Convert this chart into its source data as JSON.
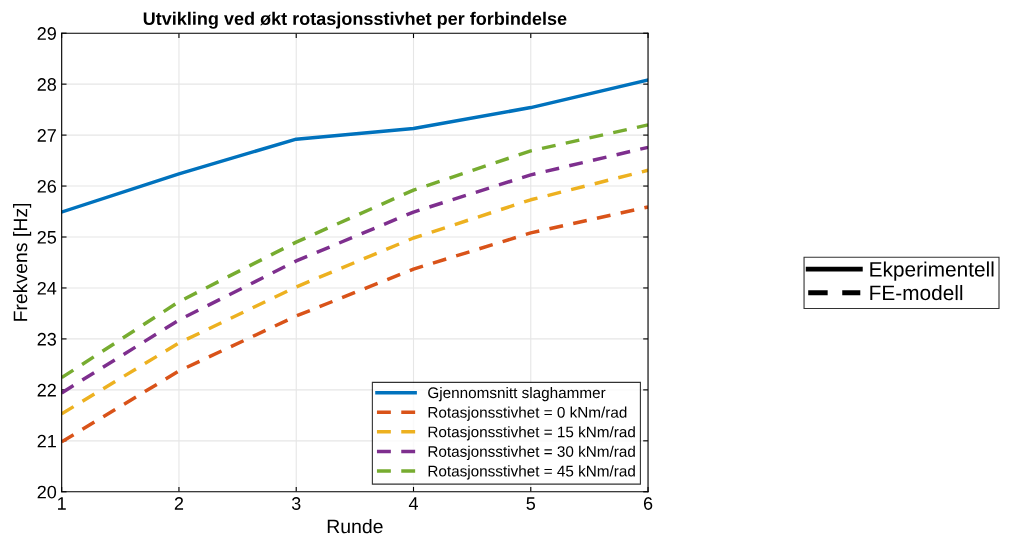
{
  "chart_data": {
    "type": "line",
    "title": "Utvikling ved økt rotasjonsstivhet per forbindelse",
    "xlabel": "Runde",
    "ylabel": "Frekvens [Hz]",
    "x": [
      1,
      2,
      3,
      4,
      5,
      6
    ],
    "series": [
      {
        "name": "Gjennomsnitt slaghammer",
        "color": "#0072bd",
        "line_style": "solid",
        "values": [
          25.49,
          26.24,
          26.92,
          27.13,
          27.54,
          28.08
        ]
      },
      {
        "name": "Rotasjonsstivhet = 0 kNm/rad",
        "color": "#d95319",
        "line_style": "dashed",
        "values": [
          20.98,
          22.37,
          23.45,
          24.37,
          25.08,
          25.59
        ]
      },
      {
        "name": "Rotasjonsstivhet = 15 kNm/rad",
        "color": "#edb120",
        "line_style": "dashed",
        "values": [
          21.53,
          22.92,
          24.02,
          24.98,
          25.73,
          26.31
        ]
      },
      {
        "name": "Rotasjonsstivhet = 30 kNm/rad",
        "color": "#7e2f8e",
        "line_style": "dashed",
        "values": [
          21.94,
          23.37,
          24.53,
          25.49,
          26.22,
          26.76
        ]
      },
      {
        "name": "Rotasjonsstivhet = 45 kNm/rad",
        "color": "#77ac30",
        "line_style": "dashed",
        "values": [
          22.24,
          23.73,
          24.9,
          25.92,
          26.69,
          27.2
        ]
      },
      {
        "name": "Ekperimentell",
        "color": "#000000",
        "line_style": "solid",
        "values": [
          null,
          null,
          null,
          null,
          null,
          null
        ]
      },
      {
        "name": "FE-modell",
        "color": "#000000",
        "line_style": "dashed",
        "values": [
          null,
          null,
          null,
          null,
          null,
          null
        ]
      }
    ],
    "xlim": [
      1,
      6
    ],
    "xticks": [
      1,
      2,
      3,
      4,
      5,
      6
    ],
    "ylim": [
      20,
      29
    ],
    "yticks": [
      20,
      21,
      22,
      23,
      24,
      25,
      26,
      27,
      28,
      29
    ],
    "grid": true,
    "legend": "bottom right"
  }
}
